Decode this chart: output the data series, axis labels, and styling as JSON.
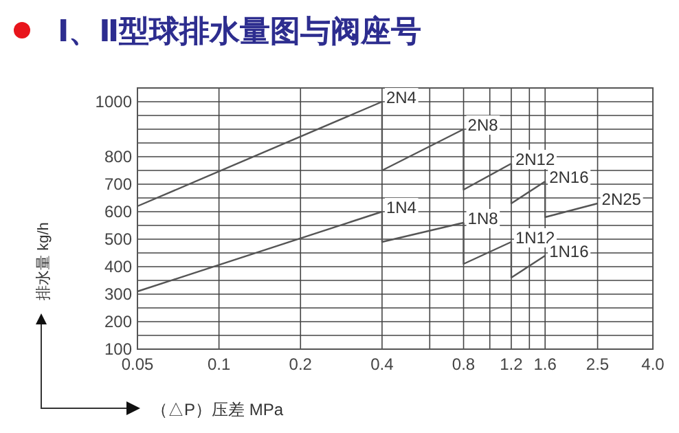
{
  "chart_data": {
    "type": "line",
    "title": "Ⅰ、Ⅱ型球排水量图与阀座号",
    "xlabel": "（△P）压差  MPa",
    "ylabel": "排水量  kg/h",
    "log": "x",
    "xlim": [
      0.05,
      4
    ],
    "ylim": [
      100,
      1050
    ],
    "xticks": [
      0.05,
      0.1,
      0.2,
      0.4,
      {
        "value": 0.6,
        "label": null
      },
      0.8,
      {
        "value": 1.0,
        "label": null
      },
      1.2,
      {
        "value": 1.4,
        "label": null
      },
      1.6,
      2.5,
      {
        "value": 4,
        "label": "4.0"
      }
    ],
    "yticks": [
      100,
      {
        "value": 150,
        "label": null
      },
      200,
      {
        "value": 250,
        "label": null
      },
      300,
      {
        "value": 350,
        "label": null
      },
      400,
      {
        "value": 450,
        "label": null
      },
      500,
      {
        "value": 550,
        "label": null
      },
      600,
      {
        "value": 650,
        "label": null
      },
      700,
      {
        "value": 750,
        "label": null
      },
      800,
      {
        "value": 850,
        "label": null
      },
      {
        "value": 900,
        "label": null
      },
      {
        "value": 950,
        "label": null
      },
      1000
    ],
    "grid": true,
    "series": [
      {
        "name": "2N4",
        "color": "#555555",
        "x": [
          0.05,
          0.4
        ],
        "values": [
          620,
          1000
        ]
      },
      {
        "name": "2N8",
        "color": "#555555",
        "x": [
          0.4,
          0.4,
          0.8
        ],
        "values": [
          1000,
          750,
          900
        ]
      },
      {
        "name": "2N12",
        "color": "#555555",
        "x": [
          0.8,
          0.8,
          1.2
        ],
        "values": [
          900,
          680,
          775
        ]
      },
      {
        "name": "2N16",
        "color": "#555555",
        "x": [
          1.2,
          1.2,
          1.6
        ],
        "values": [
          775,
          630,
          710
        ]
      },
      {
        "name": "2N25",
        "color": "#555555",
        "x": [
          1.6,
          1.6,
          2.5
        ],
        "values": [
          710,
          580,
          630
        ]
      },
      {
        "name": "1N4",
        "color": "#555555",
        "x": [
          0.05,
          0.4
        ],
        "values": [
          310,
          600
        ]
      },
      {
        "name": "1N8",
        "color": "#555555",
        "x": [
          0.4,
          0.4,
          0.8
        ],
        "values": [
          600,
          490,
          560
        ]
      },
      {
        "name": "1N12",
        "color": "#555555",
        "x": [
          0.8,
          0.8,
          1.2
        ],
        "values": [
          560,
          410,
          490
        ]
      },
      {
        "name": "1N16",
        "color": "#555555",
        "x": [
          1.2,
          1.2,
          1.6
        ],
        "values": [
          490,
          360,
          440
        ]
      }
    ]
  }
}
